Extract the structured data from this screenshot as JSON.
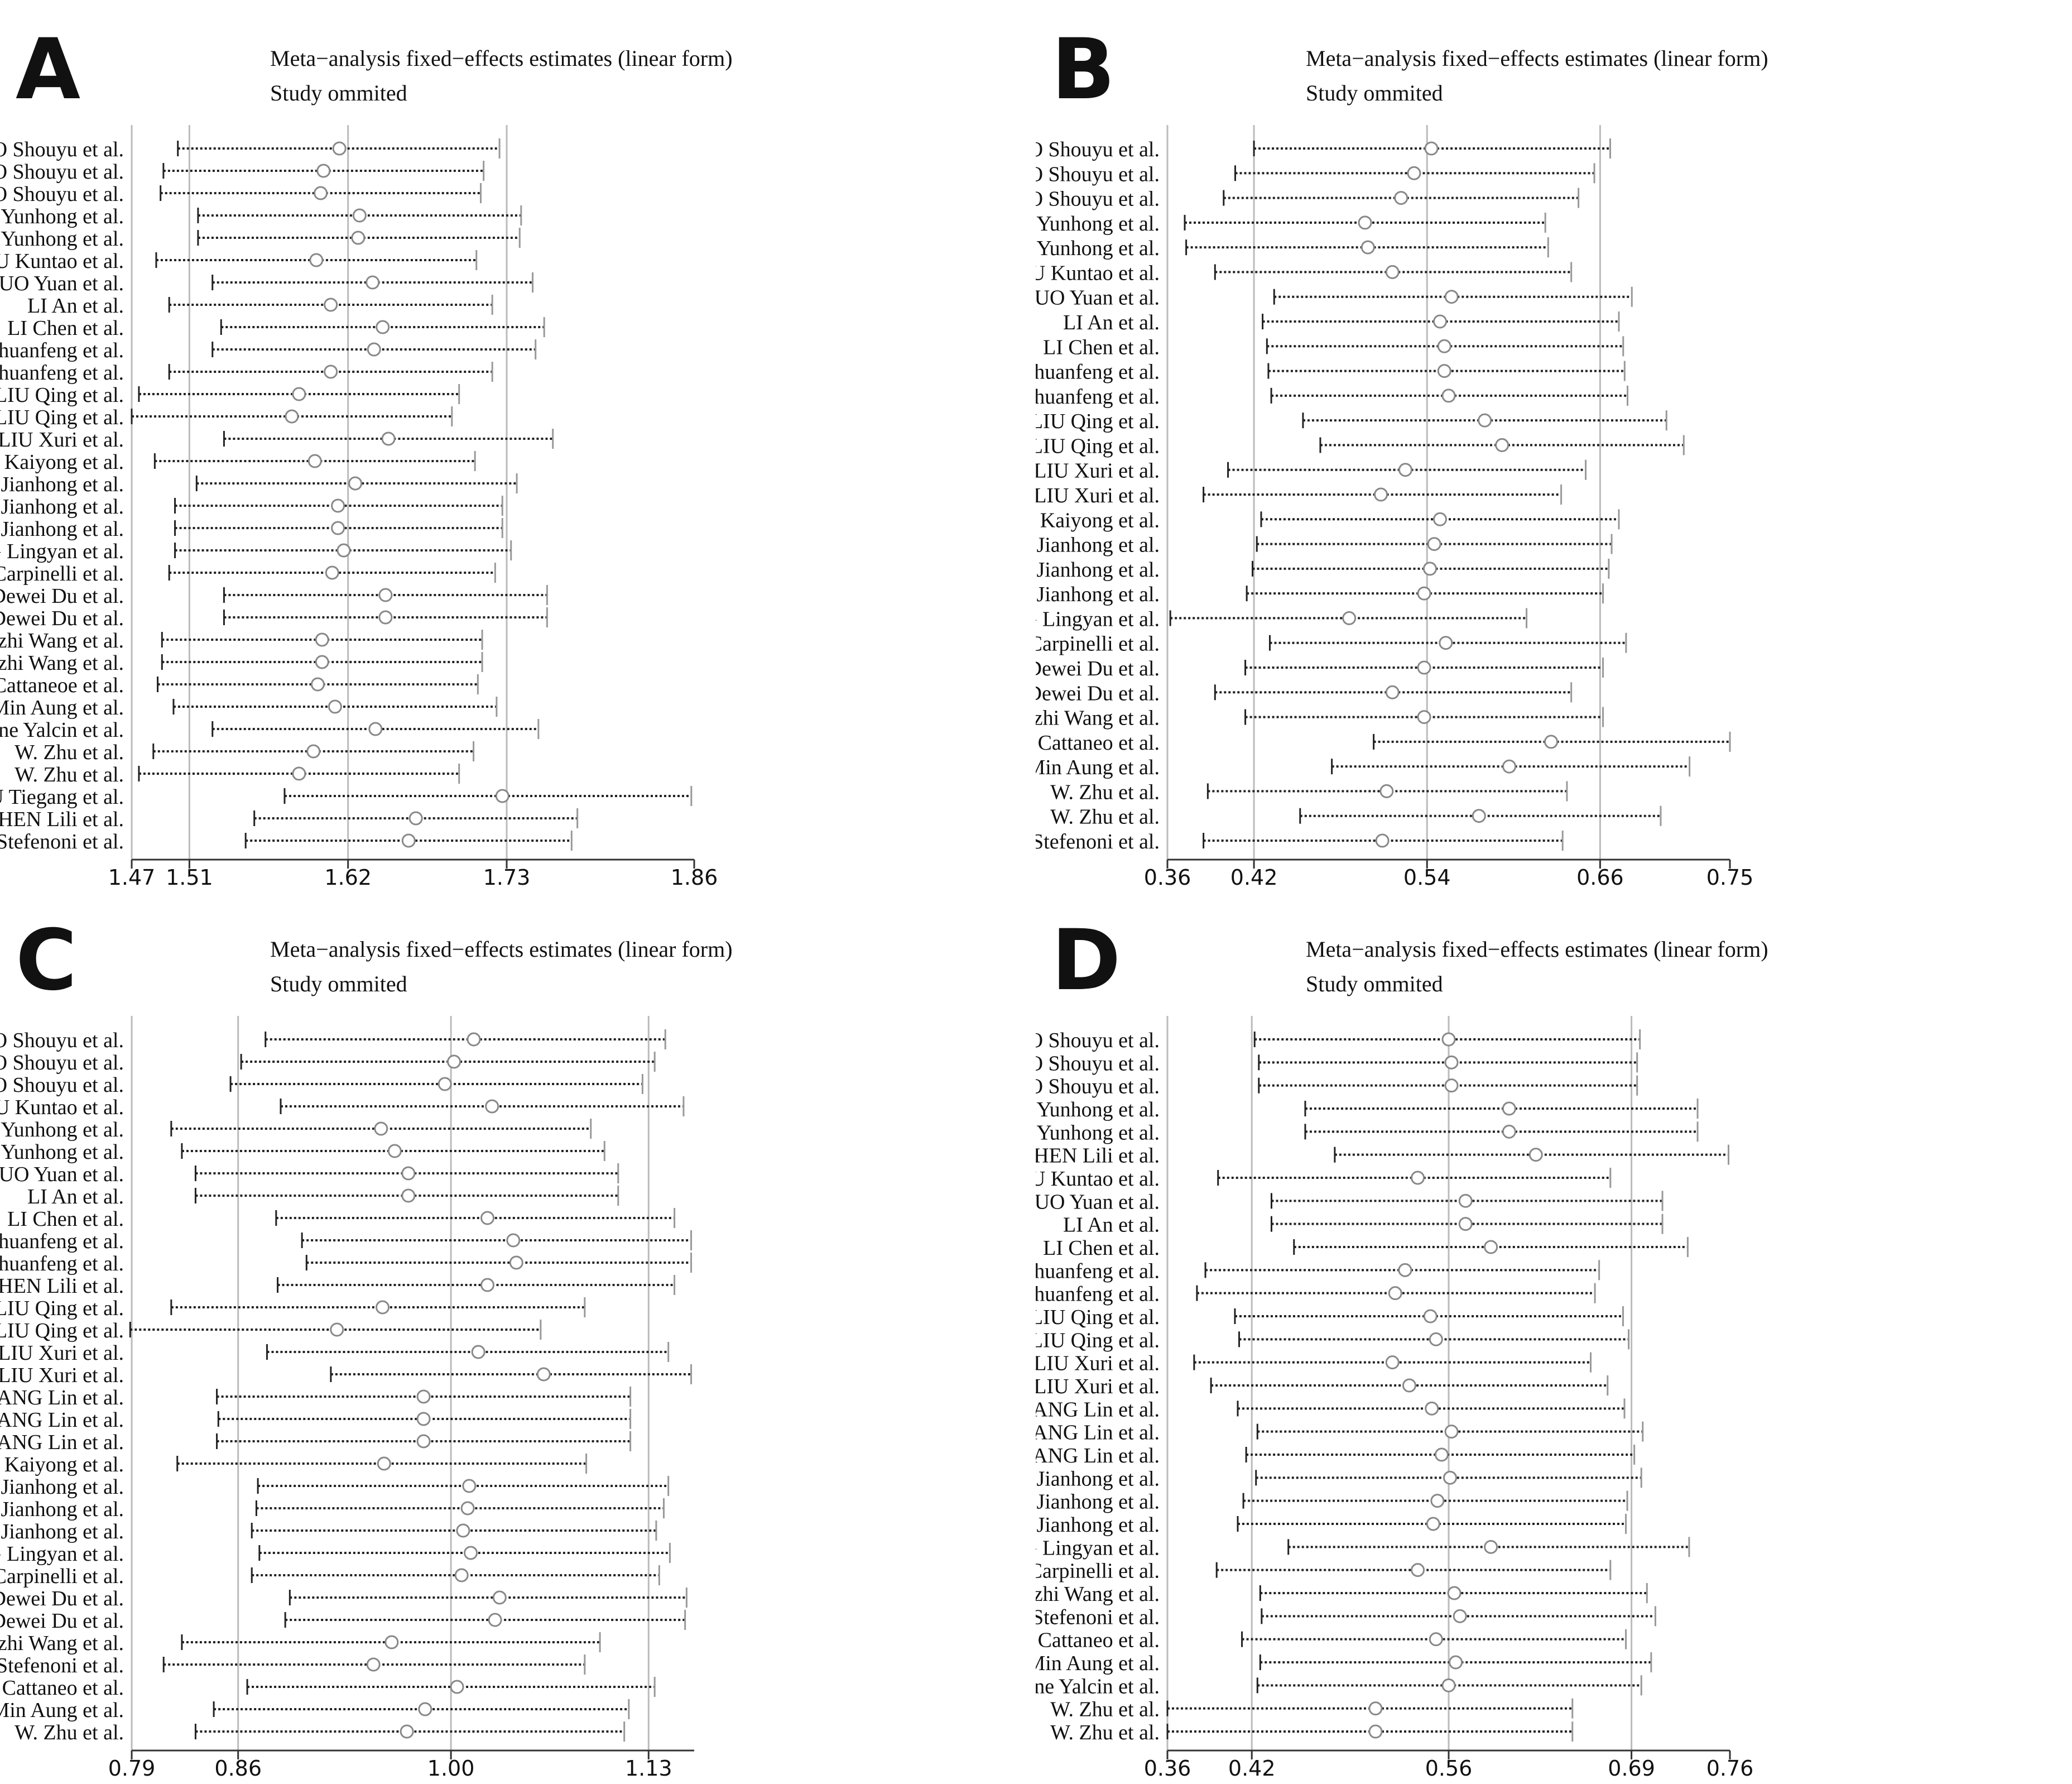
{
  "panels": [
    {
      "letter": "A",
      "title": "Meta−analysis fixed−effects estimates (linear form)",
      "subtitle": "Study ommited",
      "chart_data": {
        "type": "forest",
        "xlim": [
          1.47,
          1.86
        ],
        "ticks": [
          "1.47",
          "1.51",
          "1.62",
          "1.73",
          "1.86"
        ],
        "ref_lines": [
          1.51,
          1.62,
          1.73
        ],
        "studies": [
          "CAO Shouyu et al.",
          "CAO Shouyu et al.",
          "CAO Shouyu et al.",
          "CUI Yunhong et al.",
          "CUI Yunhong et al.",
          "GU Kuntao et al.",
          "GUO Yuan et al.",
          "LI An et al.",
          "LI Chen et al.",
          "LI Chuanfeng et al.",
          "LI Chuanfeng et al.",
          "LIU Qing et al.",
          "LIU Qing et al.",
          "LIU Xuri et al.",
          "YAO Kaiyong et al.",
          "YI Jianhong et al.",
          "YI Jianhong et al.",
          "YI Jianhong et al.",
          "ZHANG Lingyan et al.",
          "N. A. Carpinelli et al.",
          "Dewei Du et al.",
          "Dewei Du et al.",
          "Dezhi Wang et al.",
          "Dezhi Wang et al.",
          "L. Cattaneoe et al.",
          "Min Aung et al.",
          "Sakine Yalcin et al.",
          "W. Zhu et al.",
          "W. Zhu et al.",
          "ZHU Tiegang et al.",
          "CHEN Lili et al.",
          "H. Stefenoni et al."
        ],
        "est": [
          1.614,
          1.603,
          1.601,
          1.628,
          1.627,
          1.598,
          1.637,
          1.608,
          1.644,
          1.638,
          1.608,
          1.586,
          1.581,
          1.648,
          1.597,
          1.625,
          1.613,
          1.613,
          1.617,
          1.609,
          1.646,
          1.646,
          1.602,
          1.602,
          1.599,
          1.611,
          1.639,
          1.596,
          1.586,
          1.727,
          1.667,
          1.662
        ],
        "lo": [
          1.502,
          1.492,
          1.49,
          1.516,
          1.516,
          1.487,
          1.526,
          1.496,
          1.532,
          1.526,
          1.496,
          1.475,
          1.47,
          1.534,
          1.486,
          1.515,
          1.5,
          1.5,
          1.5,
          1.496,
          1.534,
          1.534,
          1.491,
          1.491,
          1.488,
          1.499,
          1.526,
          1.485,
          1.475,
          1.576,
          1.555,
          1.549
        ],
        "hi": [
          1.725,
          1.714,
          1.712,
          1.74,
          1.739,
          1.709,
          1.748,
          1.72,
          1.756,
          1.75,
          1.72,
          1.697,
          1.692,
          1.762,
          1.708,
          1.737,
          1.727,
          1.727,
          1.733,
          1.722,
          1.758,
          1.758,
          1.713,
          1.713,
          1.71,
          1.723,
          1.752,
          1.707,
          1.697,
          1.858,
          1.779,
          1.775
        ]
      }
    },
    {
      "letter": "B",
      "title": "Meta−analysis fixed−effects estimates (linear form)",
      "subtitle": "Study ommited",
      "chart_data": {
        "type": "forest",
        "xlim": [
          0.36,
          0.75
        ],
        "ticks": [
          "0.36",
          "0.42",
          "0.54",
          "0.66",
          "0.75"
        ],
        "ref_lines": [
          0.42,
          0.54,
          0.66
        ],
        "studies": [
          "CAO Shouyu et al.",
          "CAO Shouyu et al.",
          "CAO Shouyu et al.",
          "CUI Yunhong et al.",
          "CUI Yunhong et al.",
          "GU Kuntao et al.",
          "GUO Yuan et al.",
          "LI An et al.",
          "LI Chen et al.",
          "LI Chuanfeng et al.",
          "LI Chuanfeng et al.",
          "LIU Qing et al.",
          "LIU Qing et al.",
          "LIU Xuri et al.",
          "LIU Xuri et al.",
          "YAO Kaiyong et al.",
          "YI Jianhong et al.",
          "YI Jianhong et al.",
          "YI Jianhong et al.",
          "ZHANG Lingyan et al.",
          "N. A. Carpinelli et al.",
          "Dewei Du et al.",
          "Dewei Du et al.",
          "Dezhi Wang et al.",
          "L. Cattaneo et al.",
          "Min Aung et al.",
          "W. Zhu et al.",
          "W. Zhu et al.",
          "H. Stefenoni et al."
        ],
        "est": [
          0.543,
          0.531,
          0.522,
          0.497,
          0.499,
          0.516,
          0.557,
          0.549,
          0.552,
          0.552,
          0.555,
          0.58,
          0.592,
          0.525,
          0.508,
          0.549,
          0.545,
          0.542,
          0.538,
          0.486,
          0.553,
          0.538,
          0.516,
          0.538,
          0.626,
          0.597,
          0.512,
          0.576,
          0.509
        ],
        "lo": [
          0.42,
          0.407,
          0.399,
          0.372,
          0.373,
          0.393,
          0.434,
          0.426,
          0.429,
          0.43,
          0.432,
          0.454,
          0.466,
          0.402,
          0.385,
          0.425,
          0.422,
          0.419,
          0.415,
          0.362,
          0.431,
          0.414,
          0.393,
          0.414,
          0.503,
          0.474,
          0.388,
          0.452,
          0.385
        ],
        "hi": [
          0.667,
          0.656,
          0.645,
          0.622,
          0.624,
          0.64,
          0.682,
          0.673,
          0.676,
          0.677,
          0.679,
          0.706,
          0.718,
          0.65,
          0.633,
          0.673,
          0.668,
          0.666,
          0.662,
          0.609,
          0.678,
          0.662,
          0.64,
          0.662,
          0.75,
          0.722,
          0.637,
          0.702,
          0.634
        ]
      }
    },
    {
      "letter": "C",
      "title": "Meta−analysis fixed−effects estimates (linear form)",
      "subtitle": "Study ommited",
      "chart_data": {
        "type": "forest",
        "xlim": [
          0.79,
          1.16
        ],
        "ticks": [
          "0.79",
          "0.86",
          "1.00",
          "1.13"
        ],
        "ref_lines": [
          0.86,
          1.0,
          1.13
        ],
        "studies": [
          "CAO Shouyu et al.",
          "CAO Shouyu et al.",
          "CAO Shouyu et al.",
          "GU Kuntao et al.",
          "CUI Yunhong et al.",
          "CUI Yunhong et al.",
          "GUO Yuan et al.",
          "LI An et al.",
          "LI Chen et al.",
          "LI Chuanfeng et al.",
          "LI Chuanfeng et al.",
          "CHEN Lili et al.",
          "LIU Qing et al.",
          "LIU Qing et al.",
          "LIU Xuri et al.",
          "LIU Xuri et al.",
          "WANG Lin et al.",
          "WANG Lin et al.",
          "WANG Lin et al.",
          "YAO Kaiyong et al.",
          "YI Jianhong et al.",
          "YI Jianhong et al.",
          "YI Jianhong et al.",
          "ZHANG Lingyan et al.",
          "N. A. Carpinelli et al.",
          "Dewei Du et al.",
          "Dewei Du et al.",
          "Dezhi Wang et al.",
          "H. Stefenoni et al.",
          "L. Cattaneo et al.",
          "Min Aung et al.",
          "W. Zhu et al."
        ],
        "est": [
          1.015,
          1.002,
          0.996,
          1.027,
          0.954,
          0.963,
          0.972,
          0.972,
          1.024,
          1.041,
          1.043,
          1.024,
          0.955,
          0.925,
          1.018,
          1.061,
          0.982,
          0.982,
          0.982,
          0.956,
          1.012,
          1.011,
          1.008,
          1.013,
          1.007,
          1.032,
          1.029,
          0.961,
          0.949,
          1.004,
          0.983,
          0.971
        ],
        "lo": [
          0.878,
          0.862,
          0.855,
          0.888,
          0.816,
          0.823,
          0.832,
          0.832,
          0.885,
          0.902,
          0.905,
          0.886,
          0.816,
          0.789,
          0.879,
          0.921,
          0.846,
          0.847,
          0.846,
          0.82,
          0.873,
          0.872,
          0.869,
          0.874,
          0.869,
          0.894,
          0.891,
          0.823,
          0.811,
          0.866,
          0.844,
          0.832
        ],
        "hi": [
          1.141,
          1.134,
          1.126,
          1.153,
          1.092,
          1.101,
          1.11,
          1.11,
          1.147,
          1.158,
          1.158,
          1.147,
          1.088,
          1.059,
          1.143,
          1.158,
          1.118,
          1.118,
          1.118,
          1.089,
          1.143,
          1.14,
          1.135,
          1.144,
          1.137,
          1.155,
          1.154,
          1.098,
          1.088,
          1.134,
          1.117,
          1.114
        ]
      }
    },
    {
      "letter": "D",
      "title": "Meta−analysis fixed−effects estimates (linear form)",
      "subtitle": "Study ommited",
      "chart_data": {
        "type": "forest",
        "xlim": [
          0.36,
          0.76
        ],
        "ticks": [
          "0.36",
          "0.42",
          "0.56",
          "0.69",
          "0.76"
        ],
        "ref_lines": [
          0.42,
          0.56,
          0.69
        ],
        "studies": [
          "CAO Shouyu et al.",
          "CAO Shouyu et al.",
          "CAO Shouyu et al.",
          "CUI Yunhong et al.",
          "CUI Yunhong et al.",
          "CHEN Lili et al.",
          "GU Kuntao et al.",
          "GUO Yuan et al.",
          "LI An et al.",
          "LI Chen et al.",
          "LI Chuanfeng et al.",
          "LI Chuanfeng et al.",
          "LIU Qing et al.",
          "LIU Qing et al.",
          "LIU Xuri et al.",
          "LIU Xuri et al.",
          "WANG Lin et al.",
          "WANG Lin et al.",
          "WANG Lin et al.",
          "YI Jianhong et al.",
          "YI Jianhong et al.",
          "YI Jianhong et al.",
          "ZHANG Lingyan et al.",
          "N. A. Carpinelli et al.",
          "Dezhi Wang et al.",
          "H. Stefenoni et al.",
          "L. Cattaneo et al.",
          "Min Aung et al.",
          "Sakine Yalcin et al.",
          "W. Zhu et al.",
          "W. Zhu et al."
        ],
        "est": [
          0.56,
          0.562,
          0.562,
          0.603,
          0.603,
          0.622,
          0.538,
          0.572,
          0.572,
          0.59,
          0.529,
          0.522,
          0.547,
          0.551,
          0.52,
          0.532,
          0.548,
          0.562,
          0.555,
          0.561,
          0.552,
          0.549,
          0.59,
          0.538,
          0.564,
          0.568,
          0.551,
          0.565,
          0.56,
          0.508,
          0.508
        ],
        "lo": [
          0.422,
          0.425,
          0.425,
          0.458,
          0.458,
          0.479,
          0.396,
          0.434,
          0.434,
          0.45,
          0.387,
          0.381,
          0.408,
          0.411,
          0.379,
          0.391,
          0.41,
          0.424,
          0.416,
          0.423,
          0.414,
          0.41,
          0.446,
          0.395,
          0.426,
          0.427,
          0.413,
          0.426,
          0.424,
          0.36,
          0.36
        ],
        "hi": [
          0.696,
          0.694,
          0.694,
          0.737,
          0.737,
          0.759,
          0.675,
          0.712,
          0.712,
          0.73,
          0.667,
          0.664,
          0.684,
          0.688,
          0.661,
          0.673,
          0.685,
          0.698,
          0.692,
          0.697,
          0.687,
          0.686,
          0.731,
          0.675,
          0.701,
          0.707,
          0.686,
          0.704,
          0.697,
          0.648,
          0.648
        ]
      }
    }
  ]
}
